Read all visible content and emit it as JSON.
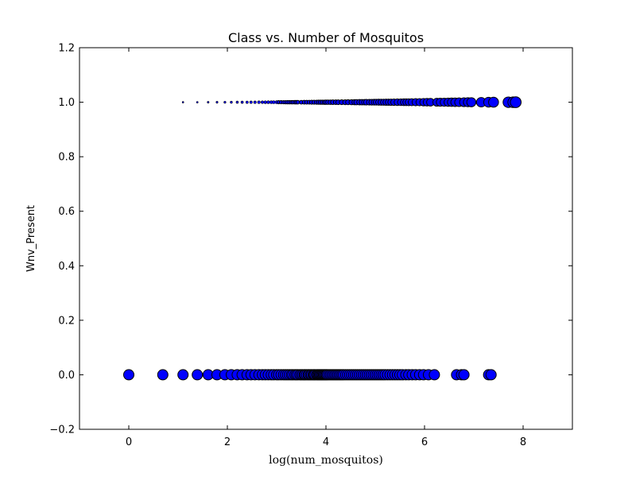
{
  "chart_data": {
    "type": "scatter",
    "title": "Class vs. Number of Mosquitos",
    "xlabel": "log(num_mosquitos)",
    "ylabel": "Wnv_Present",
    "xlim": [
      -1,
      9
    ],
    "ylim": [
      -0.2,
      1.2
    ],
    "x_ticks": [
      "0",
      "2",
      "4",
      "6",
      "8"
    ],
    "y_ticks": [
      "−0.2",
      "0.0",
      "0.2",
      "0.4",
      "0.6",
      "0.8",
      "1.0",
      "1.2"
    ],
    "marker_color": "#0000ff",
    "marker_edge_color": "#000000",
    "grid": false,
    "series": [
      {
        "class": 1,
        "note_marker_size": "grows with log(num_mosquitos)",
        "x": [
          1.1,
          1.39,
          1.61,
          1.79,
          1.95,
          2.08,
          2.2,
          2.3,
          2.4,
          2.48,
          2.56,
          2.64,
          2.71,
          2.77,
          2.83,
          2.89,
          2.94,
          3.0,
          3.04,
          3.09,
          3.14,
          3.18,
          3.22,
          3.26,
          3.3,
          3.33,
          3.37,
          3.4,
          3.43,
          3.5,
          3.56,
          3.61,
          3.66,
          3.71,
          3.76,
          3.81,
          3.85,
          3.89,
          3.93,
          3.97,
          4.0,
          4.04,
          4.09,
          4.14,
          4.2,
          4.25,
          4.32,
          4.39,
          4.45,
          4.52,
          4.58,
          4.62,
          4.68,
          4.73,
          4.78,
          4.82,
          4.88,
          4.93,
          4.98,
          5.02,
          5.07,
          5.12,
          5.17,
          5.22,
          5.27,
          5.32,
          5.38,
          5.45,
          5.52,
          5.58,
          5.63,
          5.68,
          5.74,
          5.82,
          5.9,
          5.98,
          6.05,
          6.12,
          6.25,
          6.32,
          6.4,
          6.48,
          6.55,
          6.62,
          6.7,
          6.8,
          6.88,
          6.95,
          7.15,
          7.3,
          7.4,
          7.7,
          7.8,
          7.85
        ],
        "y": 1.0
      },
      {
        "class": 0,
        "note_marker_size": "constant",
        "x": [
          0.0,
          0.69,
          1.1,
          1.39,
          1.61,
          1.79,
          1.95,
          2.08,
          2.2,
          2.3,
          2.4,
          2.48,
          2.56,
          2.64,
          2.71,
          2.77,
          2.83,
          2.89,
          2.94,
          3.0,
          3.04,
          3.09,
          3.14,
          3.18,
          3.22,
          3.26,
          3.3,
          3.33,
          3.37,
          3.4,
          3.43,
          3.47,
          3.5,
          3.53,
          3.56,
          3.58,
          3.61,
          3.64,
          3.66,
          3.69,
          3.71,
          3.74,
          3.76,
          3.78,
          3.81,
          3.83,
          3.85,
          3.87,
          3.89,
          3.91,
          3.93,
          3.95,
          3.97,
          3.99,
          4.01,
          4.03,
          4.06,
          4.09,
          4.12,
          4.15,
          4.18,
          4.21,
          4.24,
          4.27,
          4.3,
          4.33,
          4.36,
          4.4,
          4.44,
          4.48,
          4.52,
          4.56,
          4.6,
          4.64,
          4.68,
          4.72,
          4.76,
          4.8,
          4.84,
          4.88,
          4.92,
          4.96,
          5.0,
          5.04,
          5.08,
          5.12,
          5.16,
          5.2,
          5.25,
          5.3,
          5.35,
          5.4,
          5.45,
          5.5,
          5.55,
          5.62,
          5.68,
          5.75,
          5.82,
          5.9,
          5.98,
          6.08,
          6.2,
          6.65,
          6.75,
          6.8,
          7.3,
          7.35
        ],
        "y": 0.0
      }
    ]
  }
}
